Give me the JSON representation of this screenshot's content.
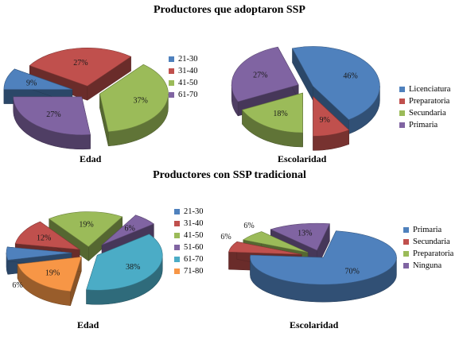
{
  "titles": {
    "top": "Productores que adoptaron SSP",
    "bottom": "Productores con SSP tradicional"
  },
  "chart_data": [
    {
      "type": "pie",
      "title": "Edad",
      "categories": [
        "21-30",
        "31-40",
        "41-50",
        "61-70"
      ],
      "values": [
        9,
        27,
        37,
        27
      ],
      "labels": [
        "9%",
        "27%",
        "37%",
        "27%"
      ],
      "colors": [
        "#4F81BD",
        "#C0504D",
        "#9BBB59",
        "#8064A2"
      ],
      "legend": "right"
    },
    {
      "type": "pie",
      "title": "Escolaridad",
      "categories": [
        "Licenciatura",
        "Preparatoria",
        "Secundaria",
        "Primaria"
      ],
      "values": [
        46,
        9,
        18,
        27
      ],
      "labels": [
        "46%",
        "9%",
        "18%",
        "27%"
      ],
      "colors": [
        "#4F81BD",
        "#C0504D",
        "#9BBB59",
        "#8064A2"
      ],
      "legend": "right"
    },
    {
      "type": "pie",
      "title": "Edad",
      "categories": [
        "21-30",
        "31-40",
        "41-50",
        "51-60",
        "61-70",
        "71-80"
      ],
      "values": [
        6,
        12,
        19,
        6,
        38,
        19
      ],
      "labels": [
        "6%",
        "12%",
        "19%",
        "6%",
        "38%",
        "19%"
      ],
      "colors": [
        "#4F81BD",
        "#C0504D",
        "#9BBB59",
        "#8064A2",
        "#4BACC6",
        "#F79646"
      ],
      "legend": "right"
    },
    {
      "type": "pie",
      "title": "Escolaridad",
      "categories": [
        "Primaria",
        "Secundaria",
        "Preparatoria",
        "Ninguna"
      ],
      "values": [
        70,
        6,
        6,
        13
      ],
      "labels": [
        "70%",
        "6%",
        "6%",
        "13%"
      ],
      "colors": [
        "#4F81BD",
        "#C0504D",
        "#9BBB59",
        "#8064A2"
      ],
      "legend": "right"
    }
  ]
}
